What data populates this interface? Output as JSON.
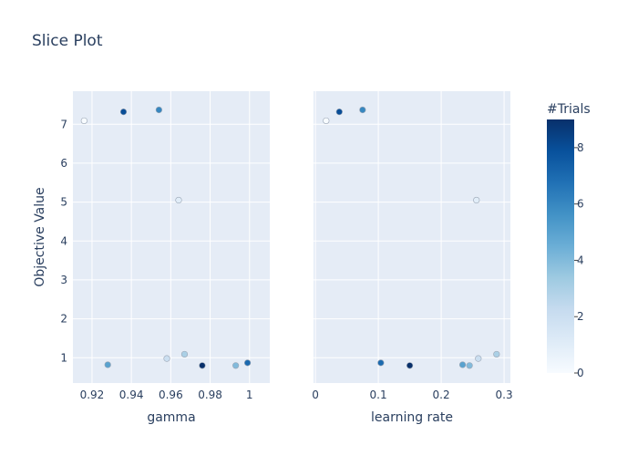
{
  "title": "Slice Plot",
  "colorbar": {
    "title": "#Trials",
    "range": [
      0,
      9
    ],
    "ticks": [
      0,
      2,
      4,
      6,
      8
    ],
    "colors": [
      "#f7fbff",
      "#deebf7",
      "#c6dbef",
      "#9ecae1",
      "#6baed6",
      "#4292c6",
      "#2171b5",
      "#08519c",
      "#08306b"
    ]
  },
  "chart_data": {
    "type": "scatter",
    "ylabel": "Objective Value",
    "ylim": [
      0.35,
      7.85
    ],
    "yticks": [
      1,
      2,
      3,
      4,
      5,
      6,
      7
    ],
    "panels": [
      {
        "xlabel": "gamma",
        "xlim": [
          0.9103,
          1.0103
        ],
        "xticks": [
          0.92,
          0.94,
          0.96,
          0.98,
          1
        ],
        "xtick_labels": [
          "0.92",
          "0.94",
          "0.96",
          "0.98",
          "1"
        ],
        "points": [
          {
            "x": 0.916,
            "y": 7.09,
            "trial": 0
          },
          {
            "x": 0.964,
            "y": 5.05,
            "trial": 1
          },
          {
            "x": 0.958,
            "y": 0.98,
            "trial": 2
          },
          {
            "x": 0.967,
            "y": 1.09,
            "trial": 3
          },
          {
            "x": 0.993,
            "y": 0.8,
            "trial": 4
          },
          {
            "x": 0.928,
            "y": 0.82,
            "trial": 5
          },
          {
            "x": 0.954,
            "y": 7.37,
            "trial": 6
          },
          {
            "x": 0.999,
            "y": 0.87,
            "trial": 7
          },
          {
            "x": 0.936,
            "y": 7.32,
            "trial": 8
          },
          {
            "x": 0.976,
            "y": 0.8,
            "trial": 9
          }
        ]
      },
      {
        "xlabel": "learning rate",
        "xlim": [
          -0.003,
          0.31
        ],
        "xticks": [
          0,
          0.1,
          0.2,
          0.3
        ],
        "xtick_labels": [
          "0",
          "0.1",
          "0.2",
          "0.3"
        ],
        "points": [
          {
            "x": 0.017,
            "y": 7.09,
            "trial": 0
          },
          {
            "x": 0.256,
            "y": 5.05,
            "trial": 1
          },
          {
            "x": 0.259,
            "y": 0.98,
            "trial": 2
          },
          {
            "x": 0.288,
            "y": 1.09,
            "trial": 3
          },
          {
            "x": 0.245,
            "y": 0.8,
            "trial": 4
          },
          {
            "x": 0.234,
            "y": 0.82,
            "trial": 5
          },
          {
            "x": 0.075,
            "y": 7.37,
            "trial": 6
          },
          {
            "x": 0.104,
            "y": 0.87,
            "trial": 7
          },
          {
            "x": 0.038,
            "y": 7.32,
            "trial": 8
          },
          {
            "x": 0.15,
            "y": 0.8,
            "trial": 9
          }
        ]
      }
    ]
  }
}
